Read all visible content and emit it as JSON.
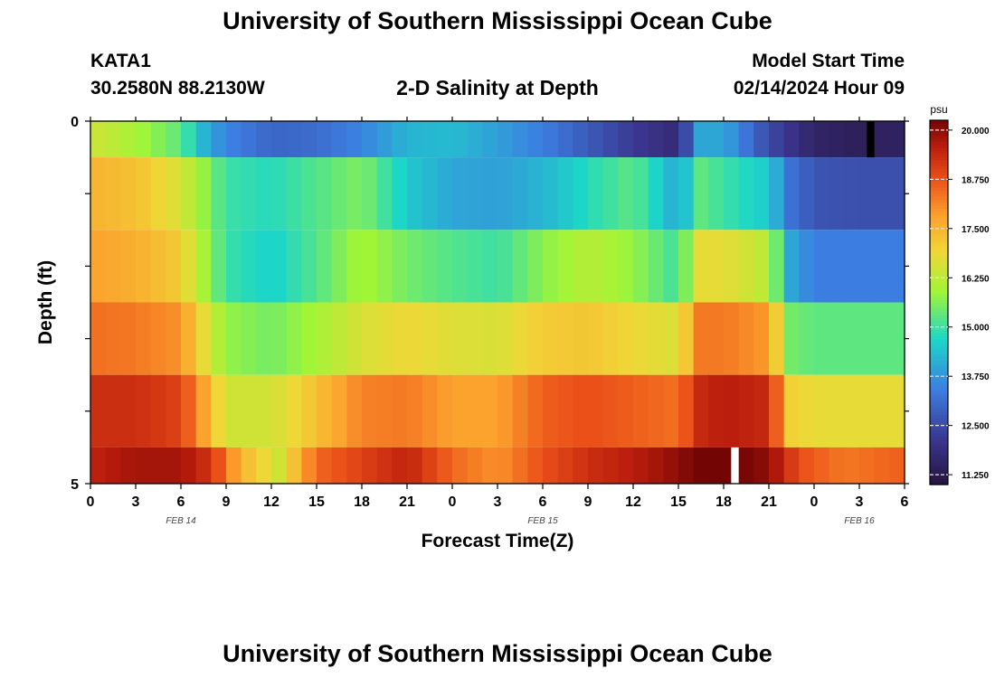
{
  "header": {
    "title": "University of Southern Mississippi Ocean Cube",
    "station": "KATA1",
    "coordinates": "30.2580N  88.2130W",
    "subtitle": "2-D Salinity at Depth",
    "model_start_label": "Model Start Time",
    "model_start_value": "02/14/2024 Hour 09"
  },
  "footer": {
    "title": "University of Southern Mississippi Ocean Cube"
  },
  "chart_data": {
    "type": "heatmap",
    "title": "2-D Salinity at Depth",
    "xlabel": "Forecast Time(Z)",
    "ylabel": "Depth (ft)",
    "x_ticks": [
      "0",
      "3",
      "6",
      "9",
      "12",
      "15",
      "18",
      "21",
      "0",
      "3",
      "6",
      "9",
      "12",
      "15",
      "18",
      "21",
      "0",
      "3",
      "6"
    ],
    "date_labels": [
      {
        "label": "FEB 14",
        "at_hour": 6
      },
      {
        "label": "FEB 15",
        "at_hour": 30
      },
      {
        "label": "FEB 16",
        "at_hour": 51
      }
    ],
    "x_range_hours": [
      0,
      54
    ],
    "y_ticks": [
      "0",
      "5"
    ],
    "y_range": [
      0,
      5
    ],
    "colorbar": {
      "unit": "psu",
      "min": 11.0,
      "max": 20.25,
      "tick_values": [
        20.0,
        18.75,
        17.5,
        16.25,
        15.0,
        13.75,
        12.5,
        11.25
      ],
      "tick_labels": [
        "20.000",
        "18.750",
        "17.500",
        "16.250",
        "15.000",
        "13.750",
        "12.500",
        "11.250"
      ]
    },
    "rows": [
      {
        "depth_range": [
          0.0,
          0.5
        ],
        "hours": [
          0,
          3,
          6,
          7.5,
          9,
          12,
          15,
          18,
          21,
          24,
          27,
          30,
          33,
          36,
          39,
          40.5,
          42,
          45,
          48,
          51,
          53,
          54
        ],
        "values": [
          16.5,
          16.0,
          15.3,
          14.2,
          13.5,
          13.0,
          13.1,
          13.5,
          14.2,
          14.3,
          13.9,
          13.4,
          12.8,
          12.2,
          11.8,
          14.0,
          14.0,
          12.5,
          11.6,
          11.4,
          11.5,
          11.5
        ]
      },
      {
        "depth_range": [
          0.5,
          1.5
        ],
        "hours": [
          0,
          3,
          6,
          7.5,
          9,
          12,
          15,
          18,
          21,
          24,
          27,
          30,
          33,
          36,
          39,
          40.5,
          42,
          45,
          46.5,
          48,
          51,
          54
        ],
        "values": [
          17.5,
          17.3,
          16.6,
          15.8,
          15.0,
          14.8,
          15.2,
          15.6,
          14.5,
          14.0,
          13.9,
          14.2,
          14.8,
          15.3,
          14.0,
          15.3,
          15.0,
          14.5,
          13.2,
          12.7,
          12.6,
          12.6
        ]
      },
      {
        "depth_range": [
          1.5,
          2.5
        ],
        "hours": [
          0,
          3,
          6,
          7.5,
          9,
          12,
          15,
          18,
          21,
          24,
          27,
          30,
          33,
          36,
          39,
          40.5,
          42,
          45,
          46.5,
          48,
          51,
          54
        ],
        "values": [
          17.8,
          17.6,
          17.1,
          16.0,
          15.0,
          14.6,
          15.2,
          16.0,
          15.5,
          15.2,
          15.0,
          15.7,
          16.2,
          15.8,
          15.0,
          16.8,
          16.8,
          16.2,
          14.0,
          13.4,
          13.4,
          13.4
        ]
      },
      {
        "depth_range": [
          2.5,
          3.5
        ],
        "hours": [
          0,
          3,
          6,
          7.5,
          9,
          12,
          15,
          18,
          21,
          24,
          27,
          30,
          33,
          36,
          39,
          40.5,
          42,
          45,
          46.5,
          48,
          51,
          54
        ],
        "values": [
          18.4,
          18.3,
          18.0,
          16.8,
          15.8,
          15.5,
          16.0,
          16.6,
          16.9,
          16.7,
          16.6,
          17.1,
          17.2,
          16.9,
          16.6,
          18.3,
          18.3,
          17.9,
          15.5,
          15.3,
          15.3,
          15.3
        ]
      },
      {
        "depth_range": [
          3.5,
          4.5
        ],
        "hours": [
          0,
          3,
          6,
          7.5,
          9,
          12,
          15,
          18,
          21,
          24,
          27,
          30,
          33,
          36,
          39,
          40.5,
          42,
          45,
          46.5,
          48,
          51,
          54
        ],
        "values": [
          19.3,
          19.3,
          19.0,
          17.8,
          16.5,
          16.5,
          17.3,
          18.2,
          18.3,
          17.8,
          17.8,
          18.6,
          18.8,
          18.6,
          18.4,
          19.4,
          19.6,
          19.4,
          17.0,
          16.8,
          16.8,
          16.8
        ]
      },
      {
        "depth_range": [
          4.5,
          5.0
        ],
        "hours": [
          0,
          3,
          6,
          8,
          10,
          12.5,
          15,
          18,
          21,
          24,
          27,
          30,
          33,
          36,
          39,
          40.5,
          42,
          45,
          47,
          50,
          54
        ],
        "values": [
          19.5,
          19.8,
          19.8,
          19.2,
          17.5,
          16.5,
          18.5,
          19.0,
          19.5,
          18.5,
          18.0,
          18.8,
          19.3,
          19.6,
          20.0,
          20.3,
          20.4,
          20.0,
          18.8,
          18.3,
          18.6
        ]
      }
    ],
    "gaps": [
      {
        "hour": 51.5,
        "depth_range": [
          0.0,
          0.5
        ],
        "color": "#000000"
      },
      {
        "hour": 42.5,
        "depth_range": [
          4.5,
          5.0
        ],
        "color": "#ffffff"
      }
    ]
  }
}
